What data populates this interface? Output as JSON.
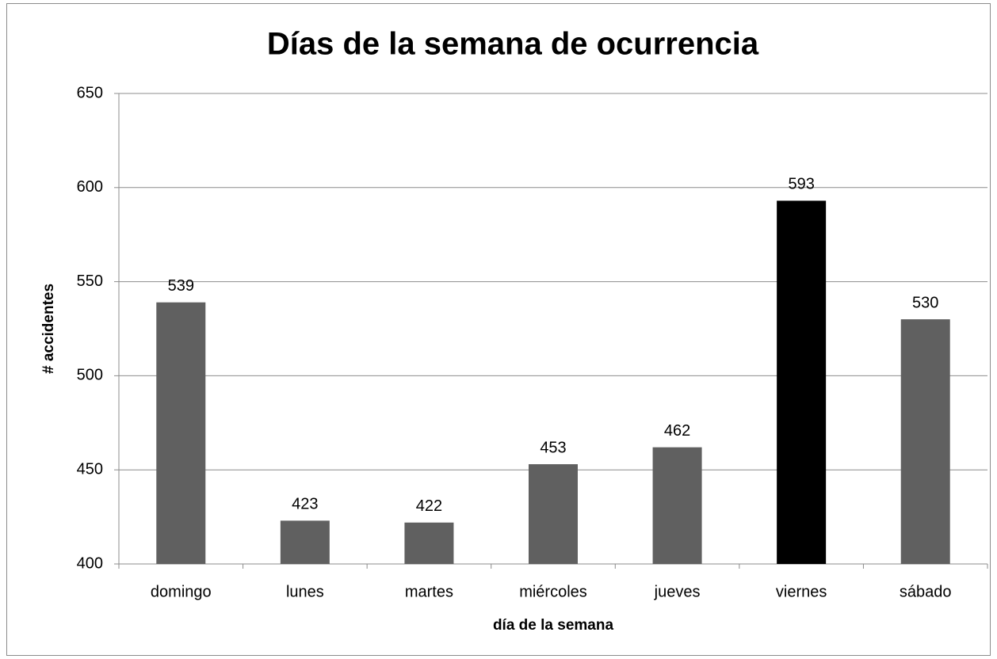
{
  "chart_data": {
    "type": "bar",
    "title": "Días de la semana de ocurrencia",
    "x_label": "día de la semana",
    "y_label": "# accidentes",
    "categories": [
      "domingo",
      "lunes",
      "martes",
      "miércoles",
      "jueves",
      "viernes",
      "sábado"
    ],
    "values": [
      539,
      423,
      422,
      453,
      462,
      593,
      530
    ],
    "colors": [
      "#606060",
      "#606060",
      "#606060",
      "#606060",
      "#606060",
      "#000000",
      "#606060"
    ],
    "ylim": [
      400,
      650
    ],
    "yticks": [
      400,
      450,
      500,
      550,
      600,
      650
    ],
    "grid": true
  }
}
